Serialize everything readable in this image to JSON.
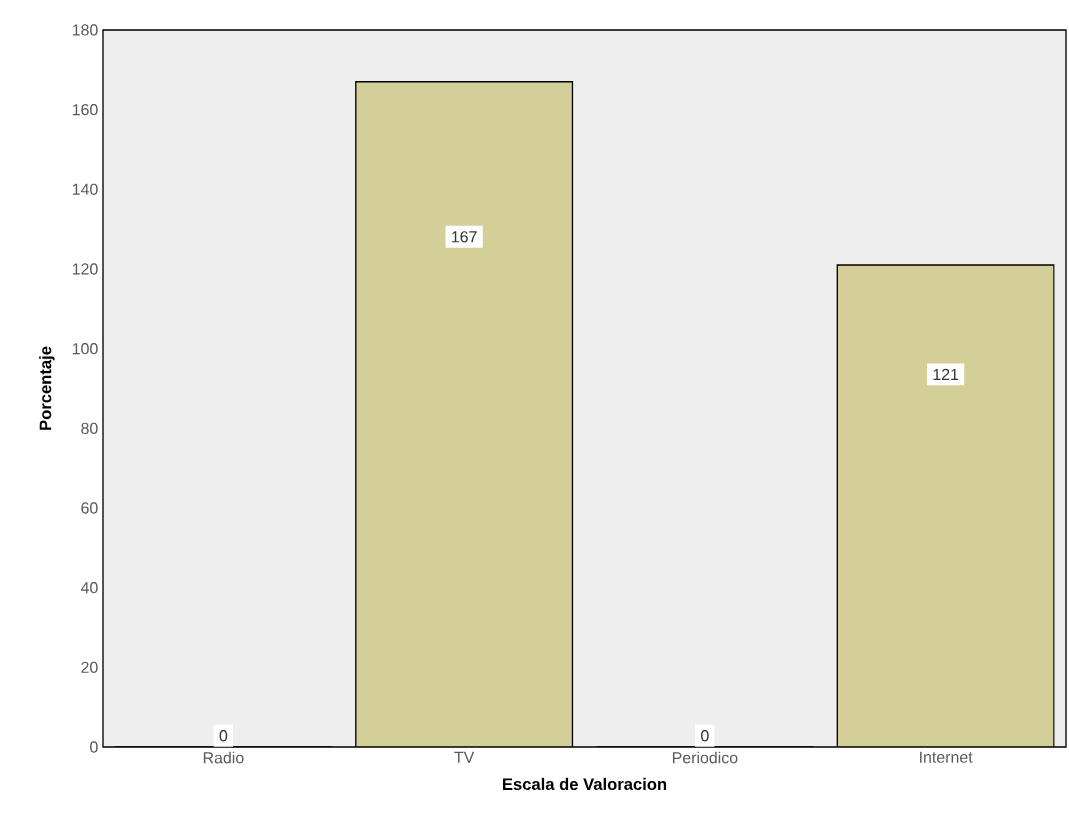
{
  "chart_data": {
    "type": "bar",
    "xlabel": "Escala de Valoracion",
    "ylabel": "Porcentaje",
    "categories": [
      "Radio",
      "TV",
      "Periodico",
      "Internet"
    ],
    "values": [
      0,
      167,
      0,
      121
    ],
    "color": "#d4ce98",
    "ylim": [
      0,
      180
    ],
    "yticks": [
      0,
      20,
      40,
      60,
      80,
      100,
      120,
      140,
      160,
      180
    ],
    "data_labels": true,
    "grid": false
  }
}
